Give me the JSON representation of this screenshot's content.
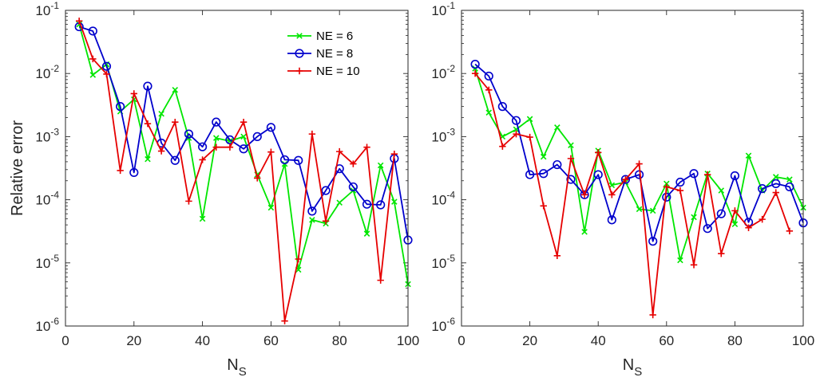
{
  "chart_data": [
    {
      "type": "line",
      "xlabel": "N_S",
      "ylabel": "Relative error",
      "xlim": [
        0,
        100
      ],
      "ylim": [
        1e-06,
        0.1
      ],
      "yscale": "log",
      "xticks": [
        "0",
        "20",
        "40",
        "60",
        "80",
        "100"
      ],
      "yticks": [
        -6,
        -5,
        -4,
        -3,
        -2,
        -1
      ],
      "legend": "top-right",
      "x": [
        4,
        8,
        12,
        16,
        20,
        24,
        28,
        32,
        36,
        40,
        44,
        48,
        52,
        56,
        60,
        64,
        68,
        72,
        76,
        80,
        84,
        88,
        92,
        96,
        100
      ],
      "series": [
        {
          "name": "NE = 6",
          "color": "#00e600",
          "marker": "x",
          "values": [
            0.06,
            0.0095,
            0.014,
            0.0025,
            0.0039,
            0.00044,
            0.0023,
            0.0055,
            0.00095,
            5e-05,
            0.00095,
            0.00085,
            0.001,
            0.00025,
            7.5e-05,
            0.00037,
            7.8e-06,
            4.8e-05,
            4.2e-05,
            9e-05,
            0.00014,
            2.9e-05,
            0.00035,
            9.3e-05,
            4.6e-06
          ]
        },
        {
          "name": "NE = 8",
          "color": "#0000cc",
          "marker": "o",
          "values": [
            0.055,
            0.047,
            0.013,
            0.003,
            0.00027,
            0.0063,
            0.00079,
            0.00042,
            0.0011,
            0.00069,
            0.0017,
            0.00089,
            0.00064,
            0.001,
            0.0014,
            0.00043,
            0.00042,
            6.6e-05,
            0.00014,
            0.00031,
            0.00016,
            8.5e-05,
            8.3e-05,
            0.00045,
            2.3e-05
          ]
        },
        {
          "name": "NE = 10",
          "color": "#e60000",
          "marker": "+",
          "values": [
            0.068,
            0.017,
            0.0098,
            0.00029,
            0.0048,
            0.0016,
            0.00059,
            0.0017,
            9.5e-05,
            0.00043,
            0.00068,
            0.00068,
            0.0017,
            0.00022,
            0.00057,
            1.2e-06,
            1.15e-05,
            0.0011,
            4.6e-05,
            0.00058,
            0.00037,
            0.00068,
            5.3e-06,
            0.00053,
            null
          ]
        }
      ]
    },
    {
      "type": "line",
      "xlabel": "N_S",
      "ylabel": "",
      "xlim": [
        0,
        100
      ],
      "ylim": [
        1e-06,
        0.1
      ],
      "yscale": "log",
      "xticks": [
        "0",
        "20",
        "40",
        "60",
        "80",
        "100"
      ],
      "yticks": [
        -6,
        -5,
        -4,
        -3,
        -2,
        -1
      ],
      "x": [
        4,
        8,
        12,
        16,
        20,
        24,
        28,
        32,
        36,
        40,
        44,
        48,
        52,
        56,
        60,
        64,
        68,
        72,
        76,
        80,
        84,
        88,
        92,
        96,
        100
      ],
      "series": [
        {
          "name": "NE = 6",
          "color": "#00e600",
          "marker": "x",
          "values": [
            0.012,
            0.0024,
            0.001,
            0.0013,
            0.0019,
            0.00048,
            0.0014,
            0.00073,
            3.1e-05,
            0.0006,
            0.00017,
            0.00019,
            7.1e-05,
            6.7e-05,
            0.00018,
            1.1e-05,
            5.3e-05,
            0.00026,
            0.00014,
            4.1e-05,
            0.0005,
            0.00014,
            0.00023,
            0.00021,
            7.5e-05
          ]
        },
        {
          "name": "NE = 8",
          "color": "#0000cc",
          "marker": "o",
          "values": [
            0.014,
            0.0091,
            0.003,
            0.0018,
            0.00025,
            0.00026,
            0.00036,
            0.00021,
            0.00012,
            0.00025,
            4.8e-05,
            0.00021,
            0.00025,
            2.2e-05,
            0.00011,
            0.00019,
            0.00026,
            3.5e-05,
            6e-05,
            0.00024,
            4.4e-05,
            0.00015,
            0.00018,
            0.00016,
            4.3e-05
          ]
        },
        {
          "name": "NE = 10",
          "color": "#e60000",
          "marker": "+",
          "values": [
            0.01,
            0.0055,
            0.0007,
            0.0011,
            0.00098,
            8e-05,
            1.3e-05,
            0.00045,
            0.00012,
            0.00056,
            0.00012,
            0.00021,
            0.00037,
            1.5e-06,
            0.00016,
            0.00014,
            9.3e-06,
            0.00025,
            1.4e-05,
            6.7e-05,
            3.6e-05,
            4.9e-05,
            0.00013,
            3.2e-05,
            null
          ]
        }
      ]
    }
  ]
}
